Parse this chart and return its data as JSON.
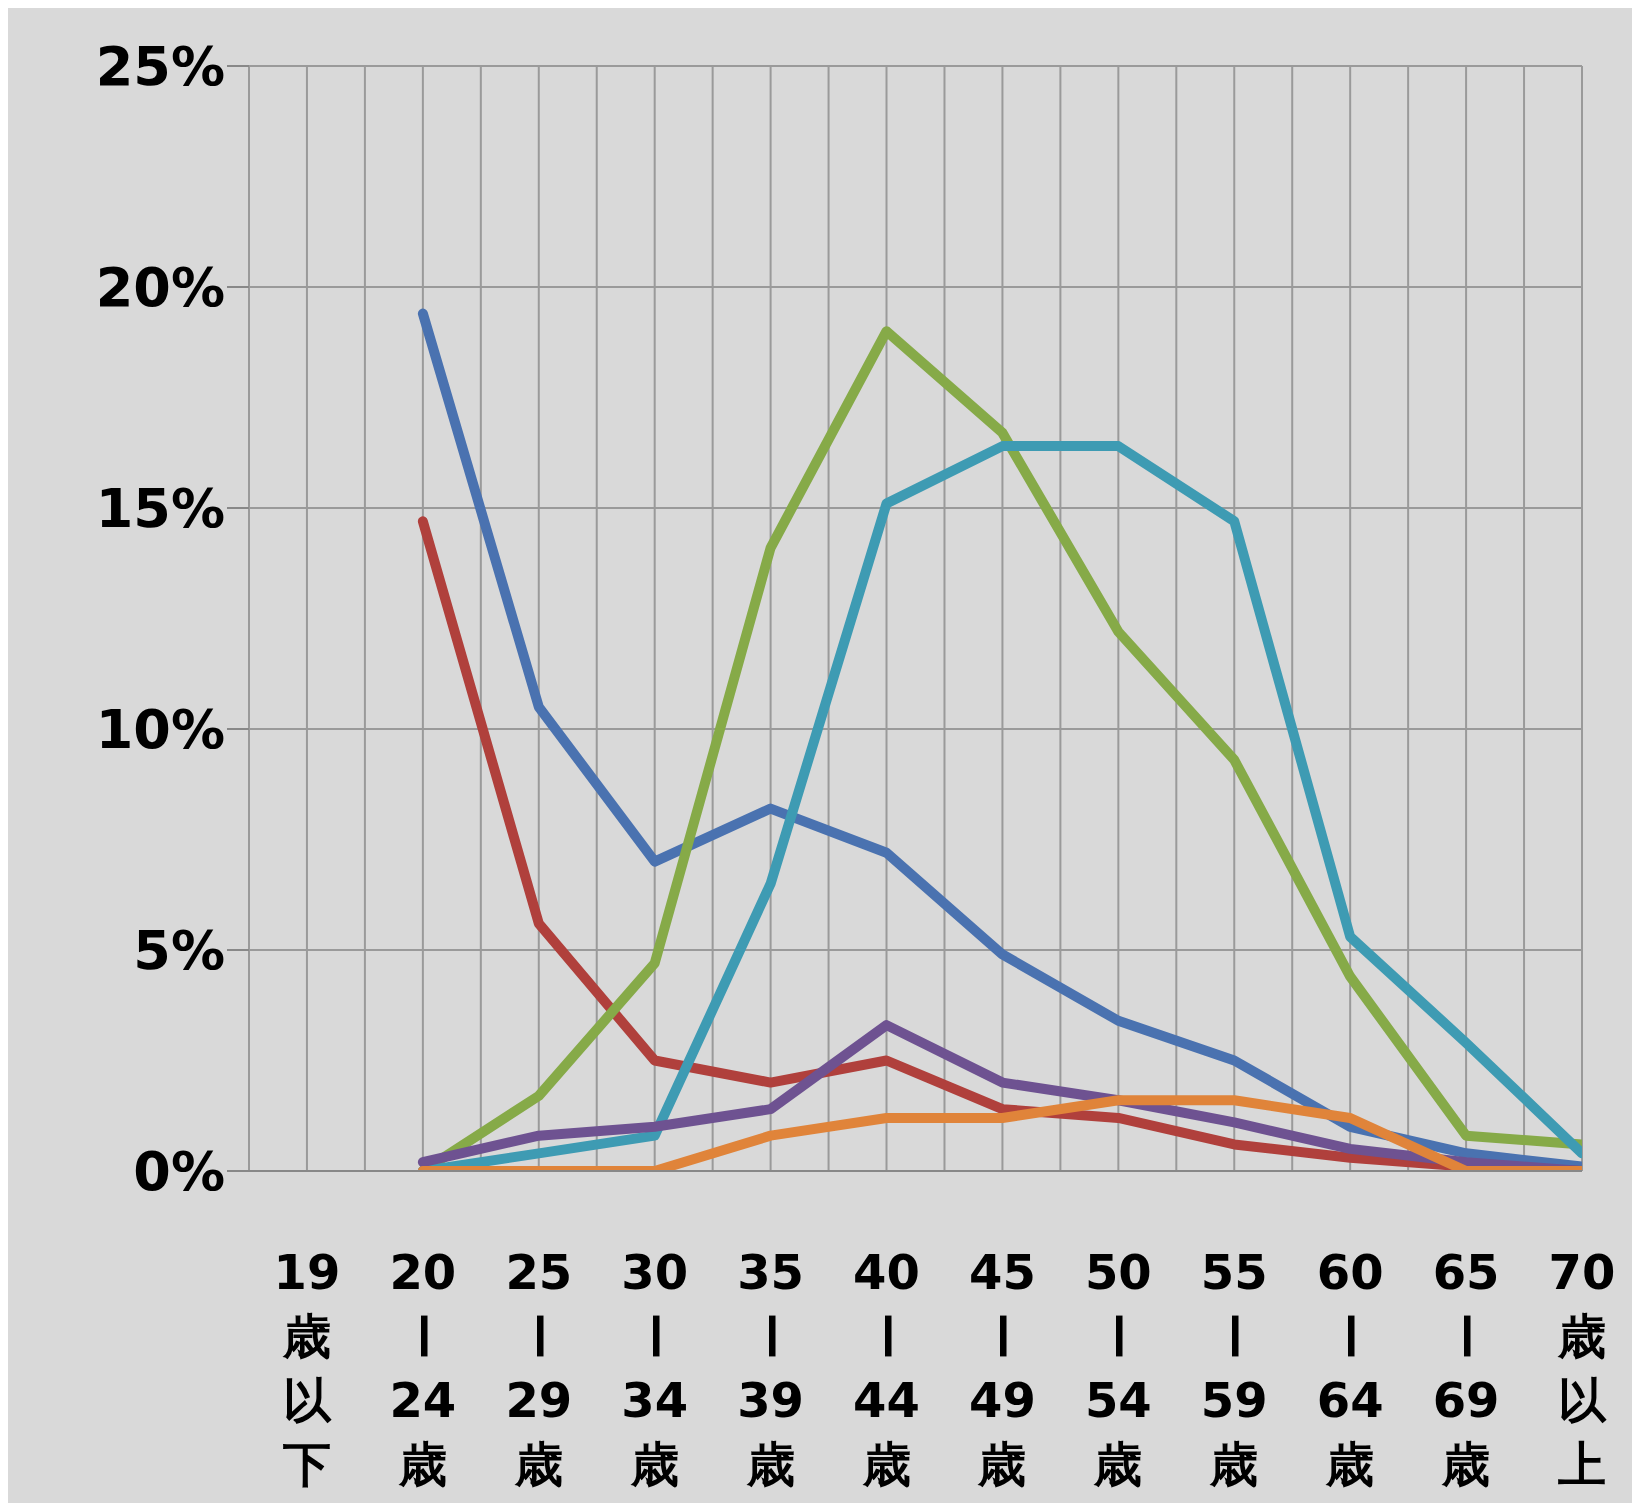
{
  "chart_data": {
    "type": "line",
    "categories": [
      "19歳以下",
      "20ー24歳",
      "25ー29歳",
      "30ー34歳",
      "35ー39歳",
      "40ー44歳",
      "45ー49歳",
      "50ー54歳",
      "55ー59歳",
      "60ー64歳",
      "65ー69歳",
      "70歳以上"
    ],
    "series": [
      {
        "color": "#4a72b0",
        "values": [
          null,
          19.4,
          10.5,
          7.0,
          8.2,
          7.2,
          4.9,
          3.4,
          2.5,
          1.0,
          0.4,
          0.1
        ]
      },
      {
        "color": "#b0403c",
        "values": [
          null,
          14.7,
          5.6,
          2.5,
          2.0,
          2.5,
          1.4,
          1.2,
          0.6,
          0.3,
          0.1,
          0
        ]
      },
      {
        "color": "#86aa48",
        "values": [
          null,
          0,
          1.7,
          4.7,
          14.1,
          19.0,
          16.7,
          12.2,
          9.3,
          4.4,
          0.8,
          0.6
        ]
      },
      {
        "color": "#3e9bb3",
        "values": [
          null,
          0,
          0.4,
          0.8,
          6.5,
          15.1,
          16.4,
          16.4,
          14.7,
          5.3,
          2.9,
          0.4
        ]
      },
      {
        "color": "#6e5291",
        "values": [
          null,
          0.2,
          0.8,
          1.0,
          1.4,
          3.3,
          2.0,
          1.6,
          1.1,
          0.5,
          0.2,
          0
        ]
      },
      {
        "color": "#e0843a",
        "values": [
          null,
          0,
          0,
          0,
          0.8,
          1.2,
          1.2,
          1.6,
          1.6,
          1.2,
          0,
          0
        ]
      }
    ],
    "ylim": [
      0,
      25
    ],
    "yticks": [
      {
        "value": 0,
        "label": "0%"
      },
      {
        "value": 5,
        "label": "5%"
      },
      {
        "value": 10,
        "label": "10%"
      },
      {
        "value": 15,
        "label": "15%"
      },
      {
        "value": 20,
        "label": "20%"
      },
      {
        "value": 25,
        "label": "25%"
      }
    ],
    "grid": true,
    "legend": false,
    "marker": "none",
    "line_style": "solid"
  }
}
